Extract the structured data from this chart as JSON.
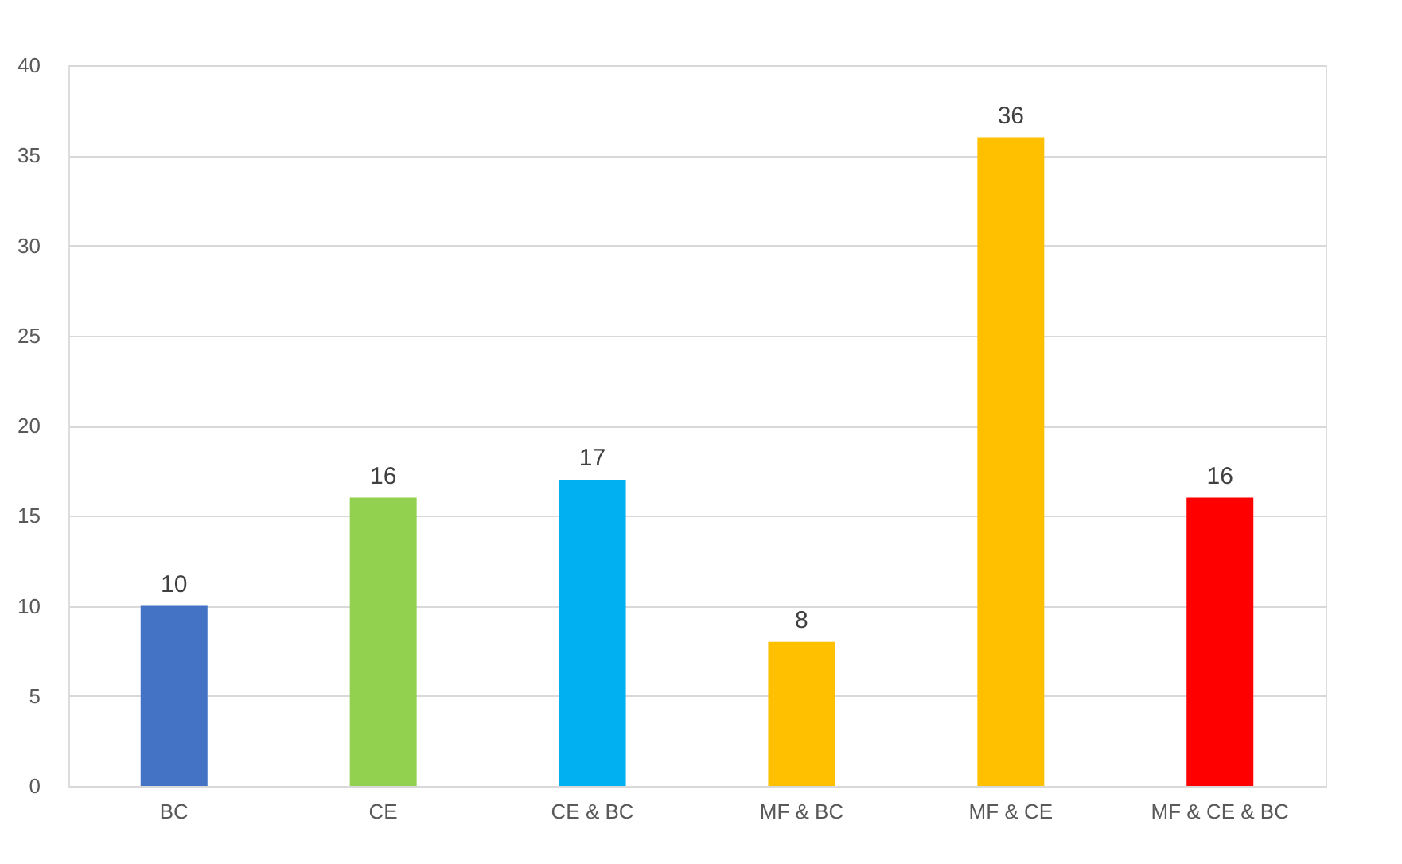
{
  "chart_data": {
    "type": "bar",
    "categories": [
      "BC",
      "CE",
      "CE & BC",
      "MF & BC",
      "MF & CE",
      "MF & CE & BC"
    ],
    "values": [
      10,
      16,
      17,
      8,
      36,
      16
    ],
    "colors": [
      "#4472c4",
      "#92d050",
      "#00b0f0",
      "#ffc000",
      "#ffc000",
      "#ff0000"
    ],
    "ylim": [
      0,
      40
    ],
    "yticks": [
      0,
      5,
      10,
      15,
      20,
      25,
      30,
      35,
      40
    ],
    "grid": "y",
    "data_labels": true
  }
}
